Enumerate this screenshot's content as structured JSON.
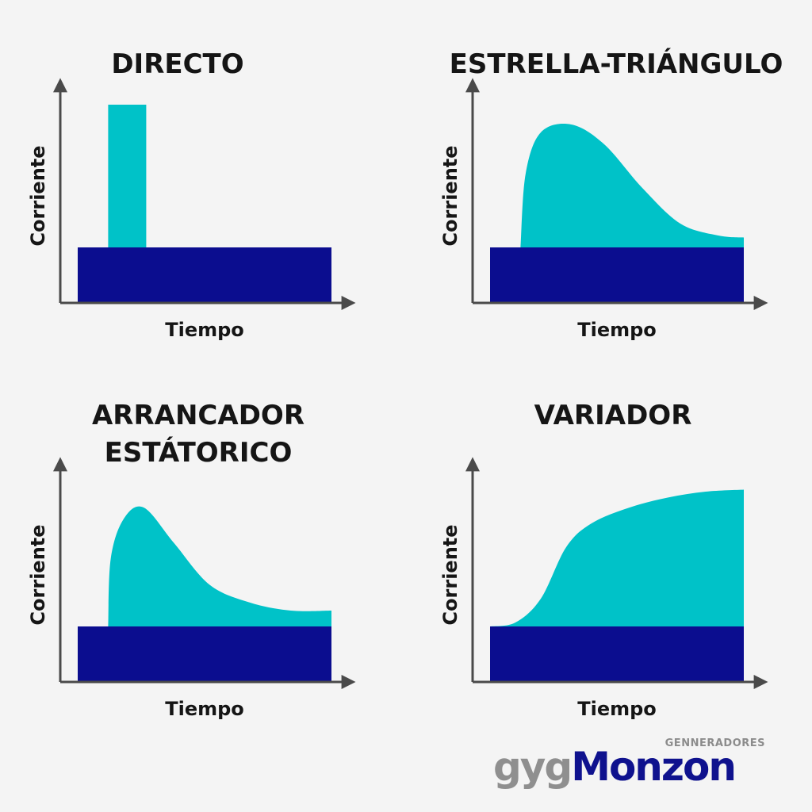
{
  "colors": {
    "base": "#0b0d8f",
    "extra": "#00c2c8",
    "axis": "#4a4a4a",
    "text": "#151515"
  },
  "charts": [
    {
      "title_lines": [
        "DIRECTO"
      ],
      "xlabel": "Tiempo",
      "ylabel": "Corriente",
      "chart_data": {
        "type": "area",
        "xlim": [
          0,
          10
        ],
        "ylim": [
          0,
          10
        ],
        "series": [
          {
            "values_x": [
              0,
              10
            ],
            "values": [
              2.8,
              2.8
            ]
          },
          {
            "values_x": [
              1.2,
              1.2,
              2.7,
              2.7
            ],
            "values": [
              2.8,
              10,
              10,
              2.8
            ]
          }
        ]
      }
    },
    {
      "title_lines": [
        "ESTRELLA-TRIÁNGULO"
      ],
      "xlabel": "Tiempo",
      "ylabel": "Corriente",
      "chart_data": {
        "type": "area",
        "xlim": [
          0,
          10
        ],
        "ylim": [
          0,
          10
        ],
        "series": [
          {
            "values_x": [
              0,
              10
            ],
            "values": [
              2.8,
              2.8
            ]
          },
          {
            "values_x": [
              1.2,
              1.4,
              2.0,
              3.2,
              4.5,
              6.0,
              7.5,
              9.0,
              10.0
            ],
            "values": [
              2.8,
              6.5,
              8.6,
              9.0,
              8.0,
              5.8,
              4.0,
              3.4,
              3.3
            ]
          }
        ]
      }
    },
    {
      "title_lines": [
        "ARRANCADOR",
        "ESTÁTORICO"
      ],
      "xlabel": "Tiempo",
      "ylabel": "Corriente",
      "chart_data": {
        "type": "area",
        "xlim": [
          0,
          10
        ],
        "ylim": [
          0,
          10
        ],
        "series": [
          {
            "values_x": [
              0,
              10
            ],
            "values": [
              2.8,
              2.8
            ]
          },
          {
            "values_x": [
              1.2,
              1.3,
              1.8,
              2.6,
              3.8,
              5.2,
              6.8,
              8.4,
              10.0
            ],
            "values": [
              2.8,
              6.2,
              8.2,
              8.8,
              7.0,
              4.9,
              4.0,
              3.6,
              3.6
            ]
          }
        ]
      }
    },
    {
      "title_lines": [
        "VARIADOR"
      ],
      "xlabel": "Tiempo",
      "ylabel": "Corriente",
      "chart_data": {
        "type": "area",
        "xlim": [
          0,
          10
        ],
        "ylim": [
          0,
          10
        ],
        "series": [
          {
            "values_x": [
              0,
              10
            ],
            "values": [
              2.8,
              2.8
            ]
          },
          {
            "values_x": [
              0.0,
              1.0,
              2.0,
              3.0,
              4.0,
              5.5,
              7.0,
              8.5,
              10.0
            ],
            "values": [
              2.8,
              3.0,
              4.2,
              6.8,
              8.0,
              8.8,
              9.3,
              9.6,
              9.7
            ]
          }
        ]
      }
    }
  ],
  "logo": {
    "top_text": "GENNERADORES",
    "part1": "gyg",
    "part2": "Monzon"
  }
}
